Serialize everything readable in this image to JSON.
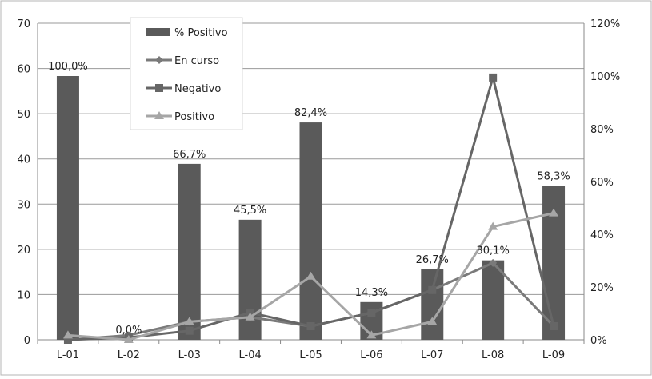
{
  "chart_data": {
    "type": "bar",
    "title": "",
    "xlabel": "",
    "ylabel": "",
    "categories": [
      "L-01",
      "L-02",
      "L-03",
      "L-04",
      "L-05",
      "L-06",
      "L-07",
      "L-08",
      "L-09"
    ],
    "ylim": [
      0,
      70
    ],
    "y_ticks": [
      "0",
      "10",
      "20",
      "30",
      "40",
      "50",
      "60",
      "70"
    ],
    "y2lim": [
      0,
      120
    ],
    "y2_ticks": [
      "0%",
      "20%",
      "40%",
      "60%",
      "80%",
      "100%",
      "120%"
    ],
    "grid": true,
    "legend_position": "top-left",
    "series": [
      {
        "name": "% Positivo",
        "type": "bar",
        "axis": "secondary",
        "color": "#5a5a5a",
        "values": [
          100.0,
          0.0,
          66.7,
          45.5,
          82.4,
          14.3,
          26.7,
          30.1,
          58.3
        ],
        "labels": [
          "100,0%",
          "0,0%",
          "66,7%",
          "45,5%",
          "82,4%",
          "14,3%",
          "26,7%",
          "30,1%",
          "58,3%"
        ]
      },
      {
        "name": "En curso",
        "type": "line",
        "axis": "primary",
        "marker": "diamond",
        "color": "#7a7a7a",
        "values": [
          0,
          1,
          4,
          5,
          3,
          6,
          11,
          17,
          3
        ]
      },
      {
        "name": "Negativo",
        "type": "line",
        "axis": "primary",
        "marker": "square",
        "color": "#666666",
        "values": [
          0,
          0.5,
          2,
          6,
          3,
          6,
          11,
          58,
          3
        ]
      },
      {
        "name": "Positivo",
        "type": "line",
        "axis": "primary",
        "marker": "triangle",
        "color": "#a6a6a6",
        "values": [
          1,
          0,
          4,
          5,
          14,
          1,
          4,
          25,
          28
        ]
      }
    ]
  }
}
